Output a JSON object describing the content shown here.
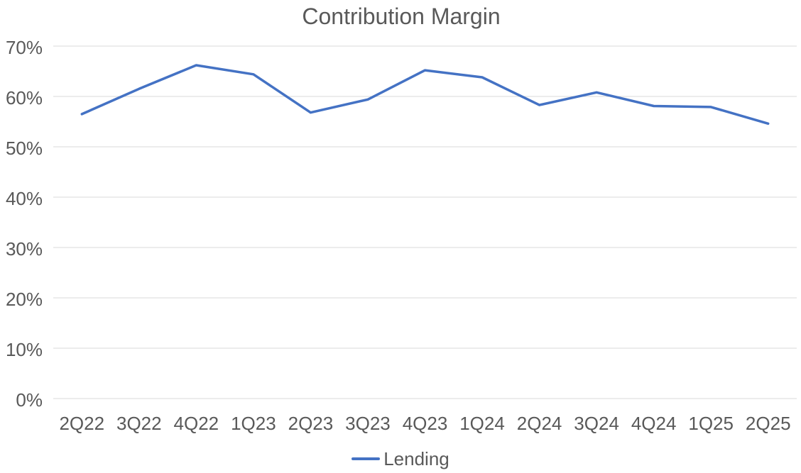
{
  "chart_data": {
    "type": "line",
    "title": "Contribution Margin",
    "categories": [
      "2Q22",
      "3Q22",
      "4Q22",
      "1Q23",
      "2Q23",
      "3Q23",
      "4Q23",
      "1Q24",
      "2Q24",
      "3Q24",
      "4Q24",
      "1Q25",
      "2Q25"
    ],
    "series": [
      {
        "name": "Lending",
        "color": "#4472C4",
        "values": [
          56.5,
          61.5,
          66.2,
          64.4,
          56.8,
          59.4,
          65.2,
          63.8,
          58.3,
          60.8,
          58.1,
          57.9,
          54.6
        ]
      }
    ],
    "xlabel": "",
    "ylabel": "",
    "y_axis": {
      "min": 0,
      "max": 70,
      "step": 10,
      "tick_labels": [
        "0%",
        "10%",
        "20%",
        "30%",
        "40%",
        "50%",
        "60%",
        "70%"
      ]
    },
    "grid": true,
    "legend_position": "bottom",
    "colors": {
      "text": "#595959",
      "gridline": "#D9D9D9",
      "background": "#ffffff"
    }
  }
}
